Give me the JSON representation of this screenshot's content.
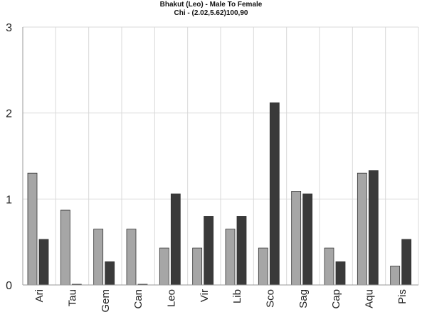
{
  "chart_data": {
    "type": "bar",
    "title": "Bhakut (Leo) - Male To Female",
    "subtitle": "Chi - (2.02,5.62)100,90",
    "categories": [
      "Ari",
      "Tau",
      "Gem",
      "Can",
      "Leo",
      "Vir",
      "Lib",
      "Sco",
      "Sag",
      "Cap",
      "Aqu",
      "Pis"
    ],
    "series": [
      {
        "values": [
          1.3,
          0.87,
          0.65,
          0.65,
          0.43,
          0.43,
          0.65,
          0.43,
          1.09,
          0.43,
          1.3,
          0.22
        ],
        "color": "#a6a6a6"
      },
      {
        "values": [
          0.53,
          0.0,
          0.27,
          0.0,
          1.06,
          0.8,
          0.8,
          2.12,
          1.06,
          0.27,
          1.33,
          0.53
        ],
        "color": "#3a3a3a"
      }
    ],
    "ylim": [
      0,
      3
    ],
    "yticks": [
      0,
      1,
      2,
      3
    ],
    "grid": true,
    "xlabel": "",
    "ylabel": "",
    "xtick_rotation": "vertical"
  }
}
